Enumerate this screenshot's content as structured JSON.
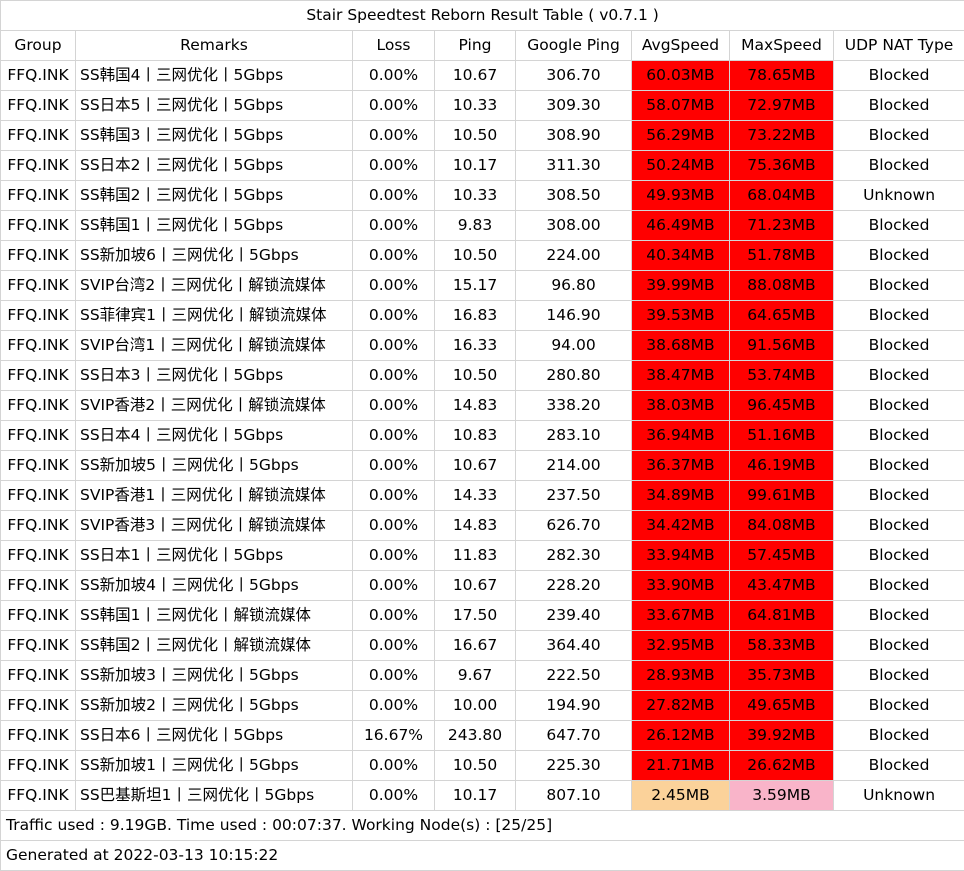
{
  "title": "Stair Speedtest Reborn Result Table ( v0.7.1 )",
  "colors": {
    "speed_high": "#ff0000",
    "avg_low": "#fbd29a",
    "max_low": "#f9b4c9",
    "border": "#d4d4d4"
  },
  "headers": [
    "Group",
    "Remarks",
    "Loss",
    "Ping",
    "Google Ping",
    "AvgSpeed",
    "MaxSpeed",
    "UDP NAT Type"
  ],
  "rows": [
    {
      "group": "FFQ.INK",
      "remarks": "SS韩国4丨三网优化丨5Gbps",
      "loss": "0.00%",
      "ping": "10.67",
      "google_ping": "306.70",
      "avg_speed": "60.03MB",
      "max_speed": "78.65MB",
      "nat": "Blocked",
      "avg_color": "#ff0000",
      "max_color": "#ff0000"
    },
    {
      "group": "FFQ.INK",
      "remarks": "SS日本5丨三网优化丨5Gbps",
      "loss": "0.00%",
      "ping": "10.33",
      "google_ping": "309.30",
      "avg_speed": "58.07MB",
      "max_speed": "72.97MB",
      "nat": "Blocked",
      "avg_color": "#ff0000",
      "max_color": "#ff0000"
    },
    {
      "group": "FFQ.INK",
      "remarks": "SS韩国3丨三网优化丨5Gbps",
      "loss": "0.00%",
      "ping": "10.50",
      "google_ping": "308.90",
      "avg_speed": "56.29MB",
      "max_speed": "73.22MB",
      "nat": "Blocked",
      "avg_color": "#ff0000",
      "max_color": "#ff0000"
    },
    {
      "group": "FFQ.INK",
      "remarks": "SS日本2丨三网优化丨5Gbps",
      "loss": "0.00%",
      "ping": "10.17",
      "google_ping": "311.30",
      "avg_speed": "50.24MB",
      "max_speed": "75.36MB",
      "nat": "Blocked",
      "avg_color": "#ff0000",
      "max_color": "#ff0000"
    },
    {
      "group": "FFQ.INK",
      "remarks": "SS韩国2丨三网优化丨5Gbps",
      "loss": "0.00%",
      "ping": "10.33",
      "google_ping": "308.50",
      "avg_speed": "49.93MB",
      "max_speed": "68.04MB",
      "nat": "Unknown",
      "avg_color": "#ff0000",
      "max_color": "#ff0000"
    },
    {
      "group": "FFQ.INK",
      "remarks": "SS韩国1丨三网优化丨5Gbps",
      "loss": "0.00%",
      "ping": "9.83",
      "google_ping": "308.00",
      "avg_speed": "46.49MB",
      "max_speed": "71.23MB",
      "nat": "Blocked",
      "avg_color": "#ff0000",
      "max_color": "#ff0000"
    },
    {
      "group": "FFQ.INK",
      "remarks": "SS新加坡6丨三网优化丨5Gbps",
      "loss": "0.00%",
      "ping": "10.50",
      "google_ping": "224.00",
      "avg_speed": "40.34MB",
      "max_speed": "51.78MB",
      "nat": "Blocked",
      "avg_color": "#ff0000",
      "max_color": "#ff0000"
    },
    {
      "group": "FFQ.INK",
      "remarks": "SVIP台湾2丨三网优化丨解锁流媒体",
      "loss": "0.00%",
      "ping": "15.17",
      "google_ping": "96.80",
      "avg_speed": "39.99MB",
      "max_speed": "88.08MB",
      "nat": "Blocked",
      "avg_color": "#ff0000",
      "max_color": "#ff0000"
    },
    {
      "group": "FFQ.INK",
      "remarks": "SS菲律宾1丨三网优化丨解锁流媒体",
      "loss": "0.00%",
      "ping": "16.83",
      "google_ping": "146.90",
      "avg_speed": "39.53MB",
      "max_speed": "64.65MB",
      "nat": "Blocked",
      "avg_color": "#ff0000",
      "max_color": "#ff0000"
    },
    {
      "group": "FFQ.INK",
      "remarks": "SVIP台湾1丨三网优化丨解锁流媒体",
      "loss": "0.00%",
      "ping": "16.33",
      "google_ping": "94.00",
      "avg_speed": "38.68MB",
      "max_speed": "91.56MB",
      "nat": "Blocked",
      "avg_color": "#ff0000",
      "max_color": "#ff0000"
    },
    {
      "group": "FFQ.INK",
      "remarks": "SS日本3丨三网优化丨5Gbps",
      "loss": "0.00%",
      "ping": "10.50",
      "google_ping": "280.80",
      "avg_speed": "38.47MB",
      "max_speed": "53.74MB",
      "nat": "Blocked",
      "avg_color": "#ff0000",
      "max_color": "#ff0000"
    },
    {
      "group": "FFQ.INK",
      "remarks": "SVIP香港2丨三网优化丨解锁流媒体",
      "loss": "0.00%",
      "ping": "14.83",
      "google_ping": "338.20",
      "avg_speed": "38.03MB",
      "max_speed": "96.45MB",
      "nat": "Blocked",
      "avg_color": "#ff0000",
      "max_color": "#ff0000"
    },
    {
      "group": "FFQ.INK",
      "remarks": "SS日本4丨三网优化丨5Gbps",
      "loss": "0.00%",
      "ping": "10.83",
      "google_ping": "283.10",
      "avg_speed": "36.94MB",
      "max_speed": "51.16MB",
      "nat": "Blocked",
      "avg_color": "#ff0000",
      "max_color": "#ff0000"
    },
    {
      "group": "FFQ.INK",
      "remarks": "SS新加坡5丨三网优化丨5Gbps",
      "loss": "0.00%",
      "ping": "10.67",
      "google_ping": "214.00",
      "avg_speed": "36.37MB",
      "max_speed": "46.19MB",
      "nat": "Blocked",
      "avg_color": "#ff0000",
      "max_color": "#ff0000"
    },
    {
      "group": "FFQ.INK",
      "remarks": "SVIP香港1丨三网优化丨解锁流媒体",
      "loss": "0.00%",
      "ping": "14.33",
      "google_ping": "237.50",
      "avg_speed": "34.89MB",
      "max_speed": "99.61MB",
      "nat": "Blocked",
      "avg_color": "#ff0000",
      "max_color": "#ff0000"
    },
    {
      "group": "FFQ.INK",
      "remarks": "SVIP香港3丨三网优化丨解锁流媒体",
      "loss": "0.00%",
      "ping": "14.83",
      "google_ping": "626.70",
      "avg_speed": "34.42MB",
      "max_speed": "84.08MB",
      "nat": "Blocked",
      "avg_color": "#ff0000",
      "max_color": "#ff0000"
    },
    {
      "group": "FFQ.INK",
      "remarks": "SS日本1丨三网优化丨5Gbps",
      "loss": "0.00%",
      "ping": "11.83",
      "google_ping": "282.30",
      "avg_speed": "33.94MB",
      "max_speed": "57.45MB",
      "nat": "Blocked",
      "avg_color": "#ff0000",
      "max_color": "#ff0000"
    },
    {
      "group": "FFQ.INK",
      "remarks": "SS新加坡4丨三网优化丨5Gbps",
      "loss": "0.00%",
      "ping": "10.67",
      "google_ping": "228.20",
      "avg_speed": "33.90MB",
      "max_speed": "43.47MB",
      "nat": "Blocked",
      "avg_color": "#ff0000",
      "max_color": "#ff0000"
    },
    {
      "group": "FFQ.INK",
      "remarks": "SS韩国1丨三网优化丨解锁流媒体",
      "loss": "0.00%",
      "ping": "17.50",
      "google_ping": "239.40",
      "avg_speed": "33.67MB",
      "max_speed": "64.81MB",
      "nat": "Blocked",
      "avg_color": "#ff0000",
      "max_color": "#ff0000"
    },
    {
      "group": "FFQ.INK",
      "remarks": "SS韩国2丨三网优化丨解锁流媒体",
      "loss": "0.00%",
      "ping": "16.67",
      "google_ping": "364.40",
      "avg_speed": "32.95MB",
      "max_speed": "58.33MB",
      "nat": "Blocked",
      "avg_color": "#ff0000",
      "max_color": "#ff0000"
    },
    {
      "group": "FFQ.INK",
      "remarks": "SS新加坡3丨三网优化丨5Gbps",
      "loss": "0.00%",
      "ping": "9.67",
      "google_ping": "222.50",
      "avg_speed": "28.93MB",
      "max_speed": "35.73MB",
      "nat": "Blocked",
      "avg_color": "#ff0000",
      "max_color": "#ff0000"
    },
    {
      "group": "FFQ.INK",
      "remarks": "SS新加坡2丨三网优化丨5Gbps",
      "loss": "0.00%",
      "ping": "10.00",
      "google_ping": "194.90",
      "avg_speed": "27.82MB",
      "max_speed": "49.65MB",
      "nat": "Blocked",
      "avg_color": "#ff0000",
      "max_color": "#ff0000"
    },
    {
      "group": "FFQ.INK",
      "remarks": "SS日本6丨三网优化丨5Gbps",
      "loss": "16.67%",
      "ping": "243.80",
      "google_ping": "647.70",
      "avg_speed": "26.12MB",
      "max_speed": "39.92MB",
      "nat": "Blocked",
      "avg_color": "#ff0000",
      "max_color": "#ff0000"
    },
    {
      "group": "FFQ.INK",
      "remarks": "SS新加坡1丨三网优化丨5Gbps",
      "loss": "0.00%",
      "ping": "10.50",
      "google_ping": "225.30",
      "avg_speed": "21.71MB",
      "max_speed": "26.62MB",
      "nat": "Blocked",
      "avg_color": "#ff0000",
      "max_color": "#ff0000"
    },
    {
      "group": "FFQ.INK",
      "remarks": "SS巴基斯坦1丨三网优化丨5Gbps",
      "loss": "0.00%",
      "ping": "10.17",
      "google_ping": "807.10",
      "avg_speed": "2.45MB",
      "max_speed": "3.59MB",
      "nat": "Unknown",
      "avg_color": "#fbd29a",
      "max_color": "#f9b4c9"
    }
  ],
  "footer": {
    "traffic": "Traffic used : 9.19GB. Time used : 00:07:37. Working Node(s) : [25/25]",
    "generated": "Generated at 2022-03-13 10:15:22"
  }
}
